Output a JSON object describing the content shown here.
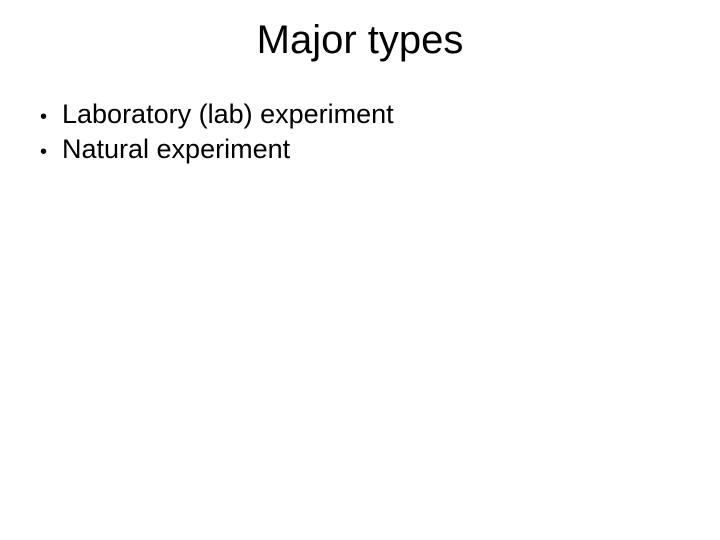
{
  "slide": {
    "title": "Major types",
    "title_fontsize": 40,
    "title_color": "#000000",
    "background_color": "#ffffff",
    "bullets": [
      {
        "marker": "•",
        "text": "Laboratory (lab) experiment"
      },
      {
        "marker": "•",
        "text": "Natural experiment"
      }
    ],
    "bullet_fontsize": 27,
    "bullet_color": "#000000",
    "font_family": "Arial"
  }
}
